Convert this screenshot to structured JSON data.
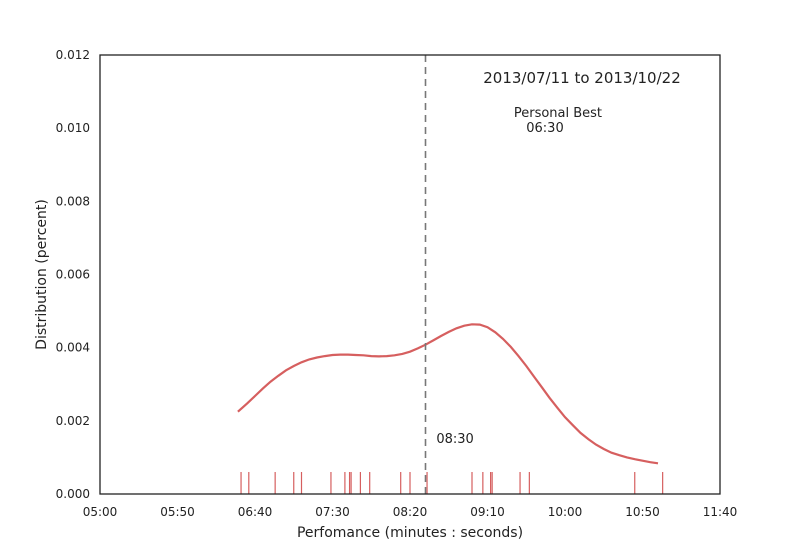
{
  "chart_data": {
    "type": "line",
    "title": "2013/07/11 to 2013/10/22",
    "xlabel": "Perfomance (minutes : seconds)",
    "ylabel": "Distribution (percent)",
    "xlim": [
      300,
      700
    ],
    "ylim": [
      0,
      0.012
    ],
    "x_ticks": [
      {
        "value": 300,
        "label": "05:00"
      },
      {
        "value": 350,
        "label": "05:50"
      },
      {
        "value": 400,
        "label": "06:40"
      },
      {
        "value": 450,
        "label": "07:30"
      },
      {
        "value": 500,
        "label": "08:20"
      },
      {
        "value": 550,
        "label": "09:10"
      },
      {
        "value": 600,
        "label": "10:00"
      },
      {
        "value": 650,
        "label": "10:50"
      },
      {
        "value": 700,
        "label": "11:40"
      }
    ],
    "y_ticks": [
      {
        "value": 0,
        "label": "0.000"
      },
      {
        "value": 0.002,
        "label": "0.002"
      },
      {
        "value": 0.004,
        "label": "0.004"
      },
      {
        "value": 0.006,
        "label": "0.006"
      },
      {
        "value": 0.008,
        "label": "0.008"
      },
      {
        "value": 0.01,
        "label": "0.010"
      },
      {
        "value": 0.012,
        "label": "0.012"
      }
    ],
    "grid": false,
    "colors": {
      "kde": "#d65f5f",
      "rug": "#d65f5f",
      "vline": "#777777",
      "axes": "#222222"
    },
    "series": [
      {
        "kind": "kde",
        "x": [
          389,
          395,
          400,
          405,
          410,
          415,
          420,
          425,
          430,
          435,
          440,
          445,
          450,
          455,
          460,
          465,
          470,
          475,
          480,
          485,
          490,
          495,
          500,
          505,
          510,
          515,
          520,
          525,
          530,
          535,
          540,
          545,
          550,
          555,
          560,
          565,
          570,
          575,
          580,
          585,
          590,
          595,
          600,
          605,
          610,
          615,
          620,
          625,
          630,
          635,
          640,
          645,
          650,
          655,
          660
        ],
        "y": [
          0.00225,
          0.00248,
          0.00268,
          0.00288,
          0.00307,
          0.00323,
          0.00338,
          0.0035,
          0.0036,
          0.00368,
          0.00373,
          0.00377,
          0.0038,
          0.00381,
          0.00381,
          0.0038,
          0.00379,
          0.00377,
          0.00376,
          0.00377,
          0.00379,
          0.00383,
          0.00389,
          0.00398,
          0.00408,
          0.0042,
          0.00432,
          0.00443,
          0.00453,
          0.0046,
          0.00464,
          0.00463,
          0.00456,
          0.00442,
          0.00424,
          0.00402,
          0.00377,
          0.0035,
          0.00321,
          0.00292,
          0.00263,
          0.00236,
          0.0021,
          0.00188,
          0.00167,
          0.0015,
          0.00135,
          0.00123,
          0.00113,
          0.00106,
          0.001,
          0.00095,
          0.00091,
          0.00087,
          0.00084
        ]
      },
      {
        "kind": "rug",
        "x": [
          391,
          396,
          413,
          425,
          430,
          449,
          458,
          461,
          462,
          468,
          474,
          494,
          500,
          511,
          540,
          547,
          552,
          553,
          571,
          577,
          645,
          663
        ]
      }
    ],
    "vline": {
      "x": 510
    },
    "annotations": [
      {
        "text": "Personal Best",
        "x": 567,
        "y": 0.0103
      },
      {
        "text": "06:30",
        "x": 575,
        "y": 0.0099
      },
      {
        "text": "08:30",
        "x": 517,
        "y": 0.0014
      }
    ]
  }
}
